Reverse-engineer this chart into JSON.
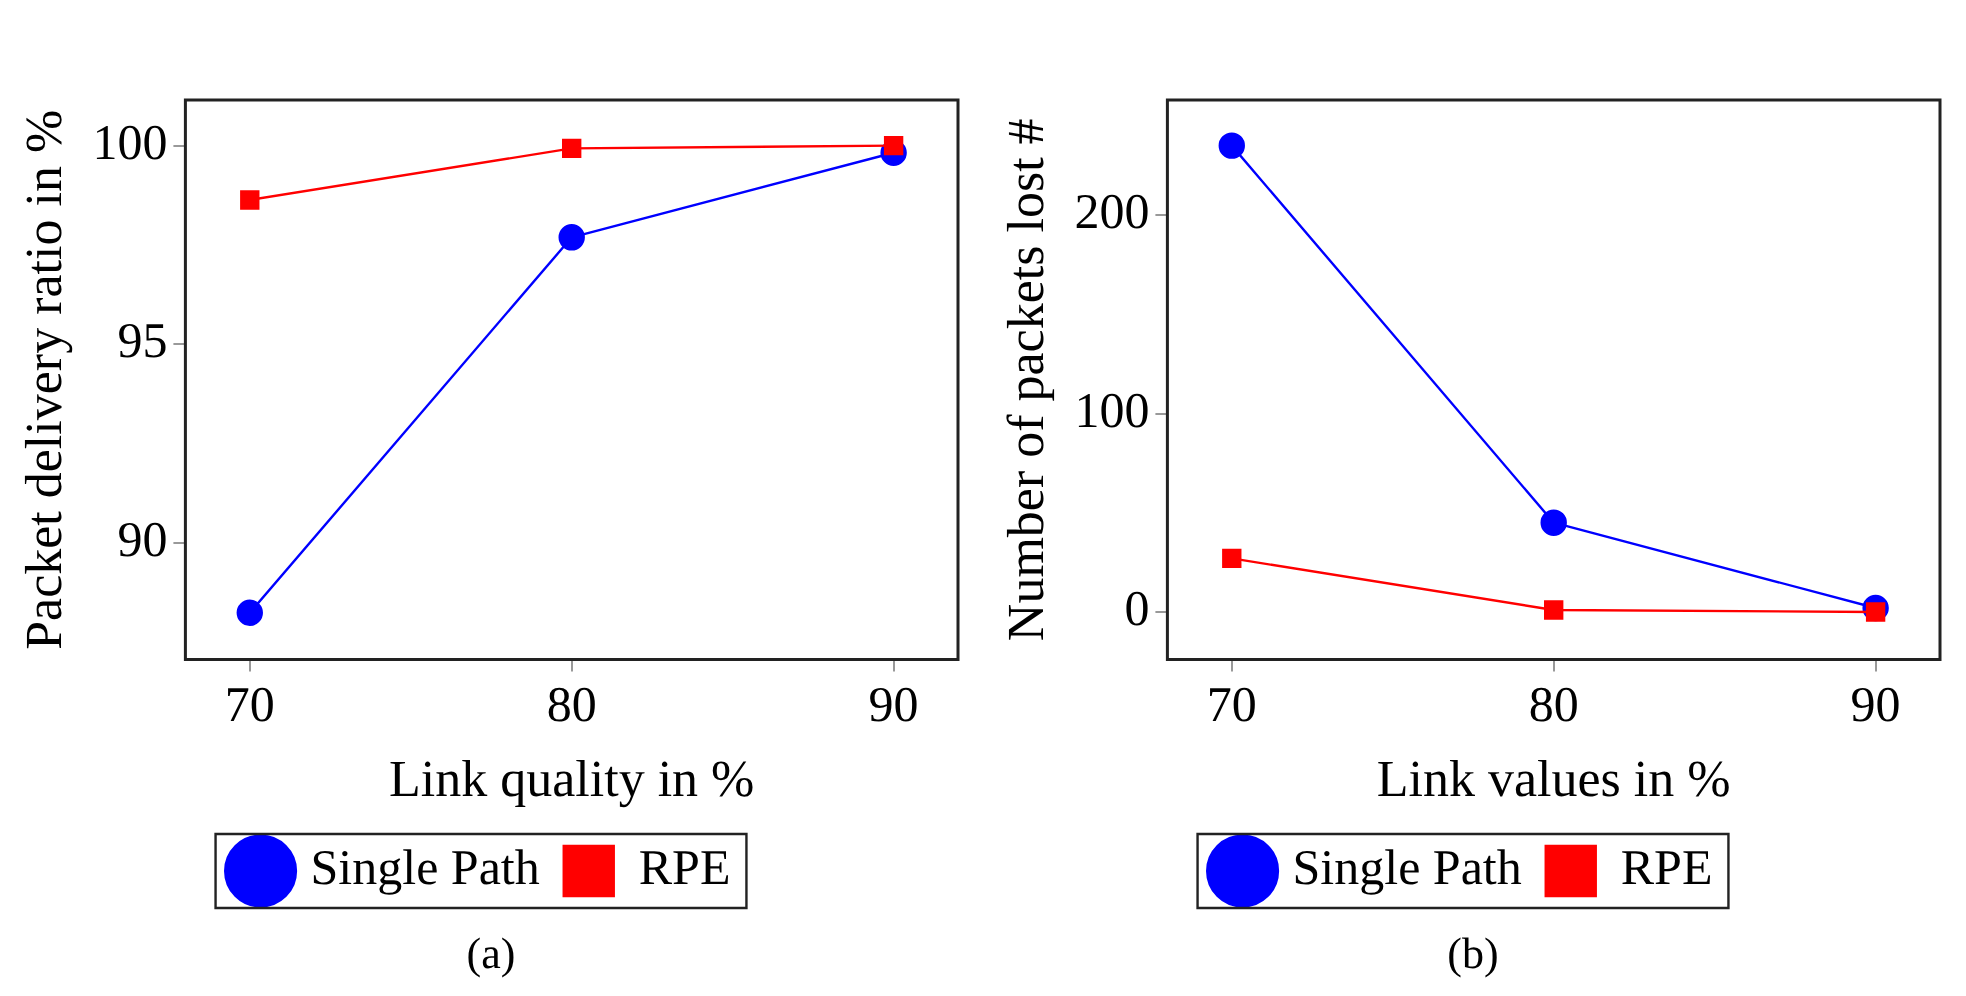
{
  "chart_data": [
    {
      "type": "line",
      "xlabel": "Link quality in %",
      "ylabel": "Packet delivery ratio in %",
      "x": [
        70,
        80,
        90
      ],
      "xlim": [
        68,
        92
      ],
      "xticks": [
        70,
        80,
        90
      ],
      "ylim": [
        87.05,
        101.15
      ],
      "yticks": [
        90,
        95,
        100
      ],
      "grid": false,
      "legend": "bottom",
      "line_style": "solid",
      "annotations": [
        "(a)"
      ],
      "series": [
        {
          "name": "Single Path",
          "color": "#0000ff",
          "marker": "circle",
          "values": [
            88.23,
            97.69,
            99.82
          ]
        },
        {
          "name": "RPE",
          "color": "#ff0000",
          "marker": "square",
          "values": [
            98.63,
            99.93,
            100
          ]
        }
      ]
    },
    {
      "type": "line",
      "xlabel": "Link values in %",
      "ylabel": "Number of packets lost #",
      "x": [
        70,
        80,
        90
      ],
      "xlim": [
        68,
        92
      ],
      "xticks": [
        70,
        80,
        90
      ],
      "ylim": [
        -24,
        258
      ],
      "yticks": [
        0,
        100,
        200
      ],
      "grid": false,
      "legend": "bottom",
      "line_style": "solid",
      "annotations": [
        "(b)"
      ],
      "series": [
        {
          "name": "Single Path",
          "color": "#0000ff",
          "marker": "circle",
          "values": [
            235,
            45,
            2
          ]
        },
        {
          "name": "RPE",
          "color": "#ff0000",
          "marker": "square",
          "values": [
            27,
            1,
            0
          ]
        }
      ]
    }
  ]
}
